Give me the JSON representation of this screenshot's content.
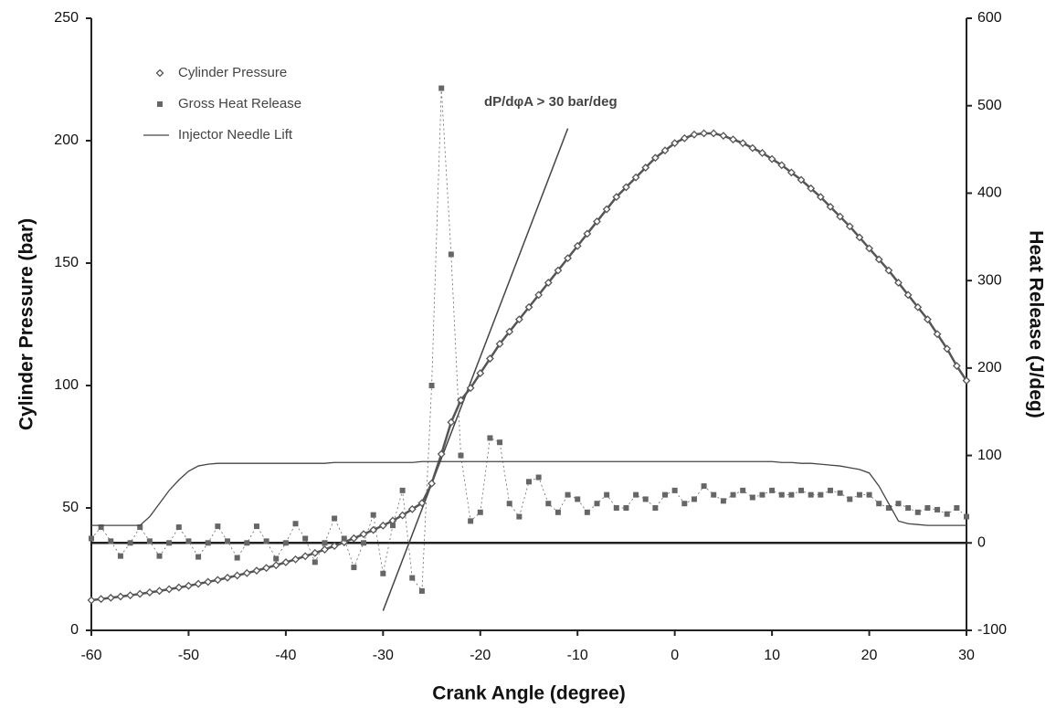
{
  "chart_data": {
    "type": "line",
    "xlabel": "Crank Angle (degree)",
    "ylabel": "Cylinder Pressure (bar)",
    "y2label": "Heat Release (J/deg)",
    "xlim": [
      -60,
      30
    ],
    "xticks": [
      -60,
      -50,
      -40,
      -30,
      -20,
      -10,
      0,
      10,
      20,
      30
    ],
    "ylim": [
      0,
      250
    ],
    "yticks": [
      0,
      50,
      100,
      150,
      200,
      250
    ],
    "y2lim": [
      -100,
      600
    ],
    "y2ticks": [
      -100,
      0,
      100,
      200,
      300,
      400,
      500,
      600
    ],
    "grid": false,
    "legend": "upper left",
    "x": [
      -60,
      -59,
      -58,
      -57,
      -56,
      -55,
      -54,
      -53,
      -52,
      -51,
      -50,
      -49,
      -48,
      -47,
      -46,
      -45,
      -44,
      -43,
      -42,
      -41,
      -40,
      -39,
      -38,
      -37,
      -36,
      -35,
      -34,
      -33,
      -32,
      -31,
      -30,
      -29,
      -28,
      -27,
      -26,
      -25,
      -24,
      -23,
      -22,
      -21,
      -20,
      -19,
      -18,
      -17,
      -16,
      -15,
      -14,
      -13,
      -12,
      -11,
      -10,
      -9,
      -8,
      -7,
      -6,
      -5,
      -4,
      -3,
      -2,
      -1,
      0,
      1,
      2,
      3,
      4,
      5,
      6,
      7,
      8,
      9,
      10,
      11,
      12,
      13,
      14,
      15,
      16,
      17,
      18,
      19,
      20,
      21,
      22,
      23,
      24,
      25,
      26,
      27,
      28,
      29,
      30
    ],
    "series": [
      {
        "name": "Cylinder Pressure",
        "color": "#555555",
        "marker": "diamond",
        "values": [
          12.3,
          12.8,
          13.3,
          13.8,
          14.3,
          14.9,
          15.5,
          16.1,
          16.8,
          17.5,
          18.2,
          19,
          19.8,
          20.6,
          21.5,
          22.4,
          23.4,
          24.4,
          25.5,
          26.6,
          27.8,
          29,
          30.3,
          31.6,
          33,
          34.5,
          36,
          37.6,
          39.3,
          41,
          42.8,
          44.8,
          47,
          49.5,
          52,
          60,
          72,
          85,
          94,
          99,
          105,
          111,
          117,
          122,
          127,
          132,
          137,
          142,
          147,
          152,
          157,
          162,
          167,
          172,
          177,
          181,
          185,
          189,
          193,
          196,
          199,
          201,
          202.5,
          203,
          203,
          202,
          200.5,
          199,
          197,
          195,
          192.5,
          190,
          187,
          184,
          180.5,
          177,
          173,
          169,
          165,
          160.5,
          156,
          151.5,
          147,
          142,
          137,
          132,
          127,
          121,
          115,
          108,
          102
        ]
      },
      {
        "name": "Gross Heat Release",
        "color": "#666666",
        "marker": "square",
        "axis": "y2",
        "values": [
          5,
          18,
          2,
          -15,
          0,
          18,
          2,
          -15,
          0,
          18,
          2,
          -16,
          0,
          19,
          2,
          -17,
          0,
          19,
          2,
          -18,
          0,
          22,
          5,
          -22,
          0,
          28,
          5,
          -28,
          0,
          32,
          -35,
          20,
          60,
          -40,
          -55,
          180,
          520,
          330,
          100,
          25,
          35,
          120,
          115,
          45,
          30,
          70,
          75,
          45,
          35,
          55,
          50,
          35,
          45,
          55,
          40,
          40,
          55,
          50,
          40,
          55,
          60,
          45,
          50,
          65,
          55,
          48,
          55,
          60,
          52,
          55,
          60,
          55,
          55,
          60,
          55,
          55,
          60,
          57,
          50,
          55,
          55,
          45,
          40,
          45,
          40,
          35,
          40,
          38,
          33,
          40,
          30
        ]
      },
      {
        "name": "Injector Needle Lift",
        "color": "#444444",
        "marker": "none",
        "axis": "y2",
        "values": [
          20,
          20,
          20,
          20,
          20,
          20,
          30,
          45,
          60,
          72,
          82,
          88,
          90,
          91,
          91,
          91,
          91,
          91,
          91,
          91,
          91,
          91,
          91,
          91,
          91,
          92,
          92,
          92,
          92,
          92,
          92,
          92,
          92,
          92,
          93,
          93,
          93,
          93,
          93,
          93,
          93,
          93,
          93,
          93,
          93,
          93,
          93,
          93,
          93,
          93,
          93,
          93,
          93,
          93,
          93,
          93,
          93,
          93,
          93,
          93,
          93,
          93,
          93,
          93,
          93,
          93,
          93,
          93,
          93,
          93,
          93,
          92,
          92,
          91,
          91,
          90,
          89,
          88,
          86,
          84,
          80,
          65,
          45,
          25,
          22,
          21,
          20,
          20,
          20,
          20,
          20
        ]
      }
    ],
    "annotation": "dP/dφA > 30 bar/deg",
    "tangent": {
      "x": [
        -30,
        -11
      ],
      "y": [
        8,
        205
      ]
    }
  }
}
